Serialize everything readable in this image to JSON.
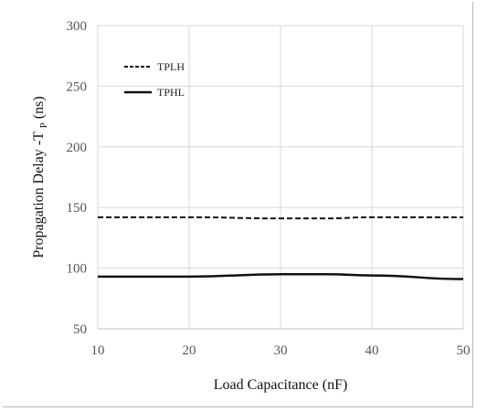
{
  "chart_data": {
    "type": "line",
    "x": [
      10,
      20,
      30,
      35,
      40,
      50
    ],
    "xlim": [
      10,
      50
    ],
    "ylim": [
      50,
      300
    ],
    "xticks": [
      "10",
      "20",
      "30",
      "40",
      "50"
    ],
    "yticks": [
      "50",
      "100",
      "150",
      "200",
      "250",
      "300"
    ],
    "xlabel": "Load Capacitance (nF)",
    "ylabel": "Propagation Delay -T",
    "ylabel_subscript": "P",
    "ylabel_unit": " (ns)",
    "grid": true,
    "legend_position": "top-left",
    "series": [
      {
        "name": "TPLH",
        "style": "dashed",
        "color": "#111111",
        "values": [
          142,
          142,
          141,
          141,
          142,
          142
        ]
      },
      {
        "name": "TPHL",
        "style": "solid",
        "color": "#111111",
        "values": [
          93,
          93,
          95,
          95,
          94,
          91
        ]
      }
    ]
  }
}
